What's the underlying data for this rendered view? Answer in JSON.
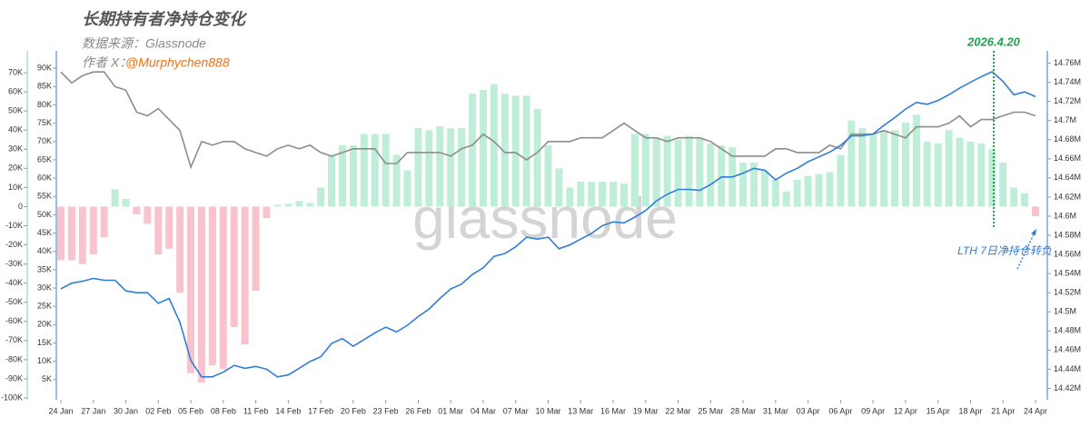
{
  "chart_data": {
    "type": "bar",
    "title": "长期持有者净持仓变化",
    "source": "数据来源：Glassnode",
    "author": "作者 X：",
    "handle": "@Murphychen888",
    "watermark": "glassnode",
    "marker_label": "2026.4.20",
    "note": "LTH 7日净持仓转负",
    "categories": [
      "24 Jan",
      null,
      null,
      "27 Jan",
      null,
      null,
      "30 Jan",
      null,
      null,
      "02 Feb",
      null,
      null,
      "05 Feb",
      null,
      null,
      "08 Feb",
      null,
      null,
      "11 Feb",
      null,
      null,
      "14 Feb",
      null,
      null,
      "17 Feb",
      null,
      null,
      "20 Feb",
      null,
      null,
      "23 Feb",
      null,
      null,
      "26 Feb",
      null,
      null,
      "01 Mar",
      null,
      null,
      "04 Mar",
      null,
      null,
      "07 Mar",
      null,
      null,
      "10 Mar",
      null,
      null,
      "13 Mar",
      null,
      null,
      "16 Mar",
      null,
      null,
      "19 Mar",
      null,
      null,
      "22 Mar",
      null,
      null,
      "25 Mar",
      null,
      null,
      "28 Mar",
      null,
      null,
      "31 Mar",
      null,
      null,
      "03 Apr",
      null,
      null,
      "06 Apr",
      null,
      null,
      "09 Apr",
      null,
      null,
      "12 Apr",
      null,
      null,
      "15 Apr",
      null,
      null,
      "18 Apr",
      null,
      null,
      "21 Apr",
      null,
      null,
      "24 Apr"
    ],
    "series": [
      {
        "type": "bar",
        "axis": "y",
        "color": "#bfeed8",
        "negative_color": "#f9c3cd",
        "values": [
          -28000,
          -28000,
          -30000,
          -25000,
          -16000,
          9000,
          4000,
          -4000,
          -9000,
          -25000,
          -22000,
          -45000,
          -87000,
          -92000,
          -83000,
          -85000,
          -63000,
          -72000,
          -44000,
          -6000,
          1000,
          1500,
          3000,
          2000,
          10000,
          27000,
          32000,
          32000,
          38000,
          38000,
          38000,
          27000,
          19000,
          41000,
          40000,
          42000,
          41000,
          41000,
          59000,
          61000,
          64000,
          59000,
          58000,
          58000,
          51000,
          32000,
          20000,
          10000,
          13000,
          13000,
          13000,
          13000,
          12000,
          38000,
          38000,
          36000,
          37000,
          35000,
          37000,
          36000,
          33000,
          32000,
          31000,
          23000,
          23000,
          19000,
          14000,
          8000,
          14000,
          16000,
          17000,
          18000,
          27000,
          45000,
          41000,
          38000,
          40000,
          40000,
          44000,
          48000,
          34000,
          33000,
          40000,
          36000,
          34000,
          33000,
          30000,
          23000,
          10000,
          7000,
          -5000
        ]
      },
      {
        "type": "line",
        "axis": "y2",
        "color": "#8c8c8c",
        "values": [
          89000,
          86000,
          88000,
          89000,
          89000,
          85000,
          84000,
          78000,
          77000,
          79000,
          76000,
          73000,
          63000,
          70000,
          69000,
          70000,
          70000,
          68000,
          67000,
          66000,
          68000,
          69000,
          68000,
          69000,
          67000,
          66000,
          67000,
          68000,
          68000,
          68000,
          64000,
          64000,
          67000,
          67000,
          67000,
          67000,
          66000,
          68000,
          69000,
          72000,
          70000,
          67000,
          67000,
          65000,
          67000,
          70000,
          70000,
          70000,
          71000,
          71000,
          71000,
          73000,
          75000,
          73000,
          71000,
          71000,
          70000,
          71000,
          71000,
          71000,
          70000,
          68000,
          66000,
          66000,
          66000,
          66000,
          68000,
          68000,
          67000,
          67000,
          67000,
          69000,
          68000,
          72000,
          72000,
          72000,
          73000,
          72000,
          71000,
          74000,
          74000,
          74000,
          75000,
          77000,
          74000,
          76000,
          76000,
          77000,
          78000,
          78000,
          77000
        ]
      },
      {
        "type": "line",
        "axis": "y3",
        "color": "#2f7ed8",
        "values": [
          14524000,
          14530000,
          14532000,
          14535000,
          14533000,
          14533000,
          14522000,
          14520000,
          14520000,
          14509000,
          14514000,
          14489000,
          14449000,
          14432000,
          14432000,
          14437000,
          14444000,
          14441000,
          14443000,
          14440000,
          14432000,
          14434000,
          14441000,
          14448000,
          14453000,
          14467000,
          14472000,
          14464000,
          14471000,
          14478000,
          14484000,
          14479000,
          14486000,
          14495000,
          14503000,
          14514000,
          14524000,
          14529000,
          14539000,
          14546000,
          14558000,
          14561000,
          14568000,
          14578000,
          14576000,
          14578000,
          14566000,
          14570000,
          14576000,
          14582000,
          14590000,
          14594000,
          14593000,
          14599000,
          14606000,
          14616000,
          14623000,
          14628000,
          14628000,
          14627000,
          14633000,
          14641000,
          14641000,
          14645000,
          14650000,
          14648000,
          14638000,
          14645000,
          14650000,
          14657000,
          14662000,
          14667000,
          14674000,
          14684000,
          14684000,
          14686000,
          14695000,
          14703000,
          14712000,
          14719000,
          14717000,
          14721000,
          14727000,
          14734000,
          14740000,
          14746000,
          14751000,
          14741000,
          14727000,
          14730000,
          14725000
        ]
      }
    ],
    "ylim": [
      -100000,
      80000
    ],
    "yticks": [
      {
        "value": -100000,
        "label": "-100K"
      },
      {
        "value": -90000,
        "label": "-90K"
      },
      {
        "value": -80000,
        "label": "-80K"
      },
      {
        "value": -70000,
        "label": "-70K"
      },
      {
        "value": -60000,
        "label": "-60K"
      },
      {
        "value": -50000,
        "label": "-50K"
      },
      {
        "value": -40000,
        "label": "-40K"
      },
      {
        "value": -30000,
        "label": "-30K"
      },
      {
        "value": -20000,
        "label": "-20K"
      },
      {
        "value": -10000,
        "label": "-10K"
      },
      0,
      {
        "value": 10000,
        "label": "10K"
      },
      {
        "value": 20000,
        "label": "20K"
      },
      {
        "value": 30000,
        "label": "30K"
      },
      {
        "value": 40000,
        "label": "40K"
      },
      {
        "value": 50000,
        "label": "50K"
      },
      {
        "value": 60000,
        "label": "60K"
      },
      {
        "value": 70000,
        "label": "70K"
      }
    ],
    "y2lim": [
      0,
      94000
    ],
    "y2ticks": [
      {
        "value": 5000,
        "label": "5K"
      },
      {
        "value": 10000,
        "label": "10K"
      },
      {
        "value": 15000,
        "label": "15K"
      },
      {
        "value": 20000,
        "label": "20K"
      },
      {
        "value": 25000,
        "label": "25K"
      },
      {
        "value": 30000,
        "label": "30K"
      },
      {
        "value": 35000,
        "label": "35K"
      },
      {
        "value": 40000,
        "label": "40K"
      },
      {
        "value": 45000,
        "label": "45K"
      },
      {
        "value": 50000,
        "label": "50K"
      },
      {
        "value": 55000,
        "label": "55K"
      },
      {
        "value": 60000,
        "label": "60K"
      },
      {
        "value": 65000,
        "label": "65K"
      },
      {
        "value": 70000,
        "label": "70K"
      },
      {
        "value": 75000,
        "label": "75K"
      },
      {
        "value": 80000,
        "label": "80K"
      },
      {
        "value": 85000,
        "label": "85K"
      },
      {
        "value": 90000,
        "label": "90K"
      }
    ],
    "y3lim": [
      14410000,
      14770000
    ],
    "y3ticks": [
      {
        "value": 14420000,
        "label": "14.42M"
      },
      {
        "value": 14440000,
        "label": "14.44M"
      },
      {
        "value": 14460000,
        "label": "14.46M"
      },
      {
        "value": 14480000,
        "label": "14.48M"
      },
      {
        "value": 14500000,
        "label": "14.5M"
      },
      {
        "value": 14520000,
        "label": "14.52M"
      },
      {
        "value": 14540000,
        "label": "14.54M"
      },
      {
        "value": 14560000,
        "label": "14.56M"
      },
      {
        "value": 14580000,
        "label": "14.58M"
      },
      {
        "value": 14600000,
        "label": "14.6M"
      },
      {
        "value": 14620000,
        "label": "14.62M"
      },
      {
        "value": 14640000,
        "label": "14.64M"
      },
      {
        "value": 14660000,
        "label": "14.66M"
      },
      {
        "value": 14680000,
        "label": "14.68M"
      },
      {
        "value": 14700000,
        "label": "14.7M"
      },
      {
        "value": 14720000,
        "label": "14.72M"
      },
      {
        "value": 14740000,
        "label": "14.74M"
      },
      {
        "value": 14760000,
        "label": "14.76M"
      }
    ]
  }
}
